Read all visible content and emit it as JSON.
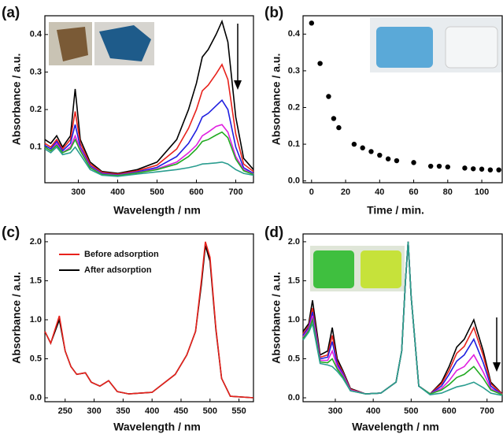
{
  "chart_data": [
    {
      "type": "line",
      "label": "(a)",
      "xlabel": "Wavelength / nm",
      "ylabel": "Absorbance / a.u.",
      "xlim": [
        215,
        745
      ],
      "xticks": [
        300,
        400,
        500,
        600,
        700
      ],
      "ylim": [
        0.005,
        0.45
      ],
      "yticks": [
        0.1,
        0.2,
        0.3,
        0.4
      ],
      "x": [
        215,
        230,
        245,
        260,
        280,
        292,
        305,
        330,
        360,
        400,
        450,
        500,
        550,
        580,
        600,
        615,
        630,
        650,
        665,
        680,
        700,
        720,
        745
      ],
      "series": [
        {
          "color": "#000000",
          "values": [
            0.12,
            0.11,
            0.13,
            0.1,
            0.13,
            0.255,
            0.12,
            0.06,
            0.035,
            0.03,
            0.04,
            0.06,
            0.12,
            0.2,
            0.27,
            0.34,
            0.36,
            0.4,
            0.435,
            0.38,
            0.18,
            0.07,
            0.04
          ]
        },
        {
          "color": "#e8221c",
          "values": [
            0.11,
            0.1,
            0.12,
            0.095,
            0.12,
            0.195,
            0.11,
            0.055,
            0.033,
            0.028,
            0.037,
            0.052,
            0.095,
            0.15,
            0.2,
            0.25,
            0.265,
            0.295,
            0.32,
            0.28,
            0.135,
            0.055,
            0.035
          ]
        },
        {
          "color": "#1f1fe0",
          "values": [
            0.105,
            0.095,
            0.115,
            0.09,
            0.11,
            0.16,
            0.1,
            0.05,
            0.03,
            0.026,
            0.034,
            0.046,
            0.075,
            0.11,
            0.145,
            0.18,
            0.19,
            0.21,
            0.225,
            0.2,
            0.1,
            0.045,
            0.03
          ]
        },
        {
          "color": "#e020e0",
          "values": [
            0.1,
            0.09,
            0.11,
            0.085,
            0.1,
            0.13,
            0.095,
            0.047,
            0.028,
            0.025,
            0.032,
            0.042,
            0.06,
            0.085,
            0.105,
            0.13,
            0.14,
            0.155,
            0.16,
            0.14,
            0.075,
            0.04,
            0.028
          ]
        },
        {
          "color": "#22aa22",
          "values": [
            0.1,
            0.09,
            0.105,
            0.085,
            0.095,
            0.12,
            0.09,
            0.045,
            0.027,
            0.024,
            0.031,
            0.04,
            0.055,
            0.075,
            0.095,
            0.115,
            0.12,
            0.132,
            0.14,
            0.125,
            0.068,
            0.037,
            0.027
          ]
        },
        {
          "color": "#2a9d8f",
          "values": [
            0.095,
            0.085,
            0.1,
            0.08,
            0.085,
            0.1,
            0.08,
            0.04,
            0.025,
            0.022,
            0.028,
            0.034,
            0.04,
            0.045,
            0.05,
            0.055,
            0.056,
            0.058,
            0.06,
            0.055,
            0.04,
            0.03,
            0.025
          ]
        }
      ]
    },
    {
      "type": "scatter",
      "label": "(b)",
      "xlabel": "Time / min.",
      "ylabel": "Absorbance / a.u.",
      "xlim": [
        -5,
        112
      ],
      "xticks": [
        0,
        20,
        40,
        60,
        80,
        100
      ],
      "ylim": [
        -0.005,
        0.45
      ],
      "yticks": [
        {
          "value": 0,
          "label": "0.0"
        },
        0.1,
        0.2,
        0.3,
        0.4
      ],
      "x": [
        0,
        5,
        10,
        13,
        16,
        25,
        30,
        35,
        40,
        45,
        50,
        60,
        70,
        75,
        80,
        90,
        95,
        100,
        105,
        110
      ],
      "values": [
        0.43,
        0.32,
        0.23,
        0.17,
        0.145,
        0.1,
        0.09,
        0.08,
        0.07,
        0.06,
        0.055,
        0.05,
        0.04,
        0.04,
        0.038,
        0.035,
        0.033,
        0.032,
        0.03,
        0.03
      ],
      "color": "#000000"
    },
    {
      "type": "line",
      "label": "(c)",
      "xlabel": "Wavelength / nm",
      "ylabel": "Absorbance / a.u.",
      "xlim": [
        215,
        575
      ],
      "xticks": [
        250,
        300,
        350,
        400,
        450,
        500,
        550
      ],
      "ylim": [
        -0.05,
        2.1
      ],
      "yticks": [
        {
          "value": 0,
          "label": "0.0"
        },
        0.5,
        {
          "value": 1,
          "label": "1.0"
        },
        1.5,
        {
          "value": 2,
          "label": "2.0"
        }
      ],
      "x": [
        215,
        225,
        240,
        250,
        260,
        270,
        285,
        295,
        310,
        325,
        340,
        360,
        400,
        440,
        460,
        475,
        485,
        492,
        500,
        510,
        520,
        535,
        575
      ],
      "series": [
        {
          "name": "After adsorption",
          "color": "#000000",
          "values": [
            0.85,
            0.7,
            1.0,
            0.6,
            0.4,
            0.3,
            0.32,
            0.2,
            0.15,
            0.22,
            0.08,
            0.05,
            0.07,
            0.3,
            0.55,
            0.85,
            1.45,
            1.95,
            1.75,
            0.88,
            0.25,
            0.02,
            0.0
          ]
        },
        {
          "name": "Before adsorption",
          "color": "#e8221c",
          "values": [
            0.85,
            0.7,
            1.05,
            0.6,
            0.4,
            0.3,
            0.32,
            0.2,
            0.15,
            0.22,
            0.08,
            0.05,
            0.07,
            0.3,
            0.55,
            0.85,
            1.5,
            2.0,
            1.8,
            0.9,
            0.25,
            0.02,
            0.0
          ]
        }
      ],
      "legend": "upper left"
    },
    {
      "type": "line",
      "label": "(d)",
      "xlabel": "Wavelength / nm",
      "ylabel": "Absorbance / a.u.",
      "xlim": [
        215,
        740
      ],
      "xticks": [
        300,
        400,
        500,
        600,
        700
      ],
      "ylim": [
        -0.05,
        2.1
      ],
      "yticks": [
        {
          "value": 0,
          "label": "0.0"
        },
        0.5,
        {
          "value": 1,
          "label": "1.0"
        },
        1.5,
        {
          "value": 2,
          "label": "2.0"
        }
      ],
      "x": [
        215,
        230,
        240,
        260,
        280,
        292,
        305,
        320,
        340,
        380,
        420,
        460,
        475,
        485,
        492,
        500,
        520,
        550,
        580,
        600,
        620,
        640,
        665,
        690,
        710,
        740
      ],
      "series": [
        {
          "color": "#000000",
          "values": [
            0.85,
            0.95,
            1.25,
            0.55,
            0.6,
            0.9,
            0.5,
            0.35,
            0.12,
            0.05,
            0.06,
            0.2,
            0.6,
            1.5,
            2.0,
            1.3,
            0.15,
            0.05,
            0.2,
            0.4,
            0.65,
            0.75,
            1.0,
            0.6,
            0.2,
            0.05
          ]
        },
        {
          "color": "#e8221c",
          "values": [
            0.82,
            0.92,
            1.15,
            0.52,
            0.55,
            0.8,
            0.46,
            0.33,
            0.11,
            0.05,
            0.06,
            0.2,
            0.6,
            1.5,
            2.0,
            1.3,
            0.15,
            0.05,
            0.18,
            0.35,
            0.57,
            0.66,
            0.9,
            0.54,
            0.18,
            0.05
          ]
        },
        {
          "color": "#1f1fe0",
          "values": [
            0.8,
            0.9,
            1.1,
            0.5,
            0.52,
            0.72,
            0.43,
            0.31,
            0.1,
            0.05,
            0.06,
            0.2,
            0.6,
            1.5,
            2.0,
            1.3,
            0.15,
            0.05,
            0.15,
            0.3,
            0.47,
            0.55,
            0.75,
            0.45,
            0.15,
            0.04
          ]
        },
        {
          "color": "#e020e0",
          "values": [
            0.78,
            0.88,
            1.05,
            0.48,
            0.48,
            0.6,
            0.4,
            0.29,
            0.1,
            0.05,
            0.06,
            0.2,
            0.6,
            1.5,
            2.0,
            1.3,
            0.15,
            0.05,
            0.12,
            0.22,
            0.35,
            0.4,
            0.55,
            0.33,
            0.12,
            0.04
          ]
        },
        {
          "color": "#22aa22",
          "values": [
            0.76,
            0.86,
            1.0,
            0.46,
            0.45,
            0.5,
            0.37,
            0.27,
            0.09,
            0.05,
            0.06,
            0.2,
            0.6,
            1.5,
            2.0,
            1.3,
            0.15,
            0.05,
            0.1,
            0.17,
            0.26,
            0.3,
            0.4,
            0.25,
            0.1,
            0.04
          ]
        },
        {
          "color": "#2a9d8f",
          "values": [
            0.74,
            0.84,
            0.95,
            0.44,
            0.42,
            0.4,
            0.34,
            0.25,
            0.09,
            0.05,
            0.06,
            0.2,
            0.6,
            1.5,
            2.0,
            1.3,
            0.15,
            0.04,
            0.06,
            0.1,
            0.14,
            0.16,
            0.2,
            0.13,
            0.06,
            0.03
          ]
        }
      ]
    }
  ]
}
